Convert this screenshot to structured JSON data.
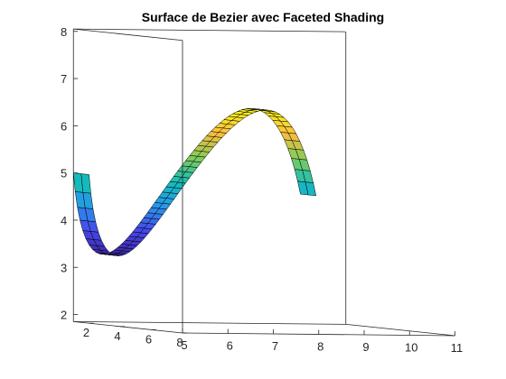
{
  "chart_data": {
    "type": "surface",
    "title": "Surface de Bezier avec Faceted Shading",
    "xlabel": "",
    "ylabel": "",
    "zlabel": "",
    "shading": "faceted",
    "colormap": "parula",
    "grid": false,
    "box": true,
    "axes": {
      "x": {
        "range": [
          5,
          11
        ],
        "ticks": [
          5,
          6,
          7,
          8,
          9,
          10,
          11
        ]
      },
      "y": {
        "range": [
          1,
          8
        ],
        "ticks": [
          2,
          4,
          6,
          8
        ]
      },
      "z": {
        "range": [
          1.85,
          8.05
        ],
        "ticks": [
          2,
          3,
          4,
          5,
          6,
          7,
          8
        ]
      }
    },
    "control_points": [
      {
        "x": 5.0,
        "z": 5.0
      },
      {
        "x": 5.3,
        "z": 1.3
      },
      {
        "x": 6.5,
        "z": 3.8
      },
      {
        "x": 6.8,
        "z": 5.2
      },
      {
        "x": 7.5,
        "z": 4.3
      },
      {
        "x": 8.5,
        "z": 8.0
      },
      {
        "x": 9.5,
        "z": 7.0
      },
      {
        "x": 10.0,
        "z": 4.6
      }
    ],
    "y_range": [
      1,
      2
    ]
  }
}
